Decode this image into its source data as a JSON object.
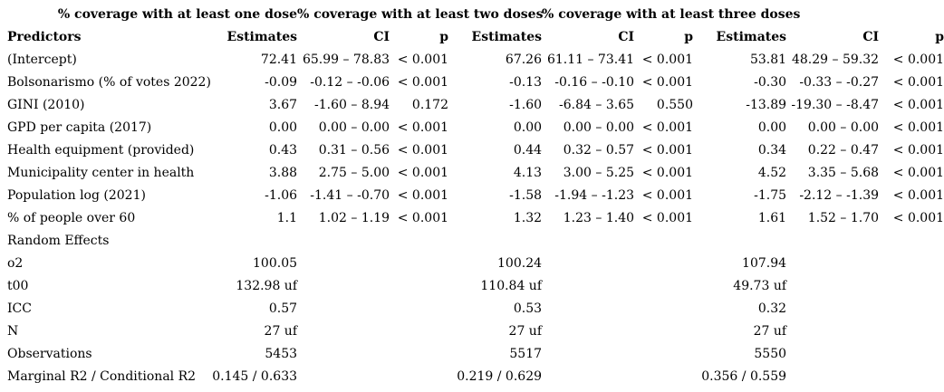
{
  "table": {
    "model_headers": [
      "% coverage with at least one dose",
      "% coverage with at least two doses",
      "% coverage with at least three doses"
    ],
    "column_headers": [
      "Predictors",
      "Estimates",
      "CI",
      "p"
    ],
    "predictor_rows": [
      {
        "label": "(Intercept)",
        "models": [
          {
            "estimate": "72.41",
            "ci": "65.99 – 78.83",
            "p": "< 0.001"
          },
          {
            "estimate": "67.26",
            "ci": "61.11 – 73.41",
            "p": "< 0.001"
          },
          {
            "estimate": "53.81",
            "ci": "48.29 – 59.32",
            "p": "< 0.001"
          }
        ]
      },
      {
        "label": "Bolsonarismo (% of votes 2022)",
        "models": [
          {
            "estimate": "-0.09",
            "ci": "-0.12 – -0.06",
            "p": "< 0.001"
          },
          {
            "estimate": "-0.13",
            "ci": "-0.16 – -0.10",
            "p": "< 0.001"
          },
          {
            "estimate": "-0.30",
            "ci": "-0.33 – -0.27",
            "p": "< 0.001"
          }
        ]
      },
      {
        "label": "GINI (2010)",
        "models": [
          {
            "estimate": "3.67",
            "ci": "-1.60 – 8.94",
            "p": "0.172"
          },
          {
            "estimate": "-1.60",
            "ci": "-6.84 – 3.65",
            "p": "0.550"
          },
          {
            "estimate": "-13.89",
            "ci": "-19.30 – -8.47",
            "p": "< 0.001"
          }
        ]
      },
      {
        "label": "GPD per capita (2017)",
        "models": [
          {
            "estimate": "0.00",
            "ci": "0.00 – 0.00",
            "p": "< 0.001"
          },
          {
            "estimate": "0.00",
            "ci": "0.00 – 0.00",
            "p": "< 0.001"
          },
          {
            "estimate": "0.00",
            "ci": "0.00 – 0.00",
            "p": "< 0.001"
          }
        ]
      },
      {
        "label": "Health equipment (provided)",
        "models": [
          {
            "estimate": "0.43",
            "ci": "0.31 – 0.56",
            "p": "< 0.001"
          },
          {
            "estimate": "0.44",
            "ci": "0.32 – 0.57",
            "p": "< 0.001"
          },
          {
            "estimate": "0.34",
            "ci": "0.22 – 0.47",
            "p": "< 0.001"
          }
        ]
      },
      {
        "label": "Municipality center in health",
        "models": [
          {
            "estimate": "3.88",
            "ci": "2.75 – 5.00",
            "p": "< 0.001"
          },
          {
            "estimate": "4.13",
            "ci": "3.00 – 5.25",
            "p": "< 0.001"
          },
          {
            "estimate": "4.52",
            "ci": "3.35 – 5.68",
            "p": "< 0.001"
          }
        ]
      },
      {
        "label": "Population log (2021)",
        "models": [
          {
            "estimate": "-1.06",
            "ci": "-1.41 – -0.70",
            "p": "< 0.001"
          },
          {
            "estimate": "-1.58",
            "ci": "-1.94 – -1.23",
            "p": "< 0.001"
          },
          {
            "estimate": "-1.75",
            "ci": "-2.12 – -1.39",
            "p": "< 0.001"
          }
        ]
      },
      {
        "label": "% of people over 60",
        "models": [
          {
            "estimate": "1.1",
            "ci": "1.02 – 1.19",
            "p": "< 0.001"
          },
          {
            "estimate": "1.32",
            "ci": "1.23 – 1.40",
            "p": "< 0.001"
          },
          {
            "estimate": "1.61",
            "ci": "1.52 – 1.70",
            "p": "< 0.001"
          }
        ]
      }
    ],
    "section_rows": [
      {
        "label": "Random Effects",
        "values": [
          "",
          "",
          ""
        ]
      },
      {
        "label": "o2",
        "values": [
          "100.05",
          "100.24",
          "107.94"
        ]
      },
      {
        "label": "t00",
        "values": [
          "132.98 uf",
          "110.84 uf",
          "49.73 uf"
        ]
      },
      {
        "label": "ICC",
        "values": [
          "0.57",
          "0.53",
          "0.32"
        ]
      },
      {
        "label": "N",
        "values": [
          "27 uf",
          "27 uf",
          "27 uf"
        ]
      },
      {
        "label": "Observations",
        "values": [
          "5453",
          "5517",
          "5550"
        ]
      },
      {
        "label": "Marginal R2 / Conditional R2",
        "values": [
          "0.145 / 0.633",
          "0.219 / 0.629",
          "0.356 / 0.559"
        ]
      }
    ]
  }
}
